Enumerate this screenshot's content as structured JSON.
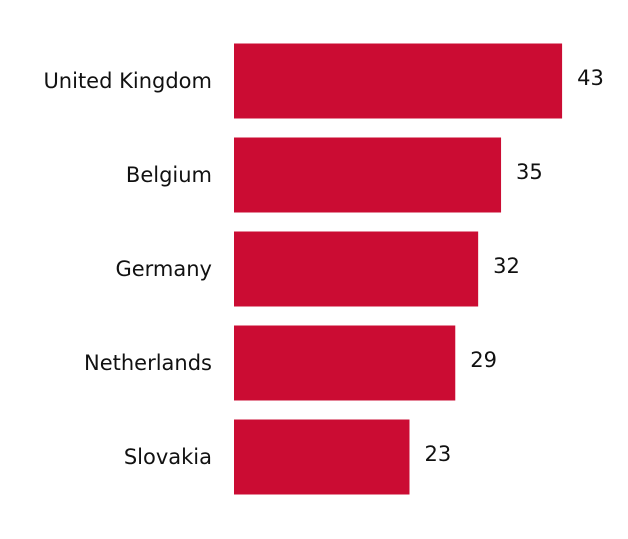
{
  "chart_data": {
    "type": "bar",
    "orientation": "horizontal",
    "categories": [
      "United Kingdom",
      "Belgium",
      "Germany",
      "Netherlands",
      "Slovakia"
    ],
    "values": [
      43,
      35,
      32,
      29,
      23
    ],
    "color": "#cb0c33"
  }
}
